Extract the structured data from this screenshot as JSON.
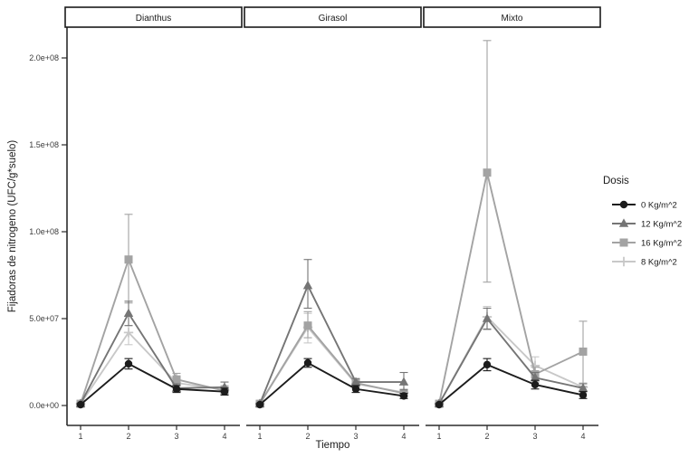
{
  "chart_data": {
    "type": "line",
    "title": "",
    "xlabel": "Tiempo",
    "ylabel": "Fijadoras de nitrogeno (UFC/g*suelo)",
    "legend_title": "Dosis",
    "legend_position": "right",
    "grid": false,
    "x": [
      1,
      2,
      3,
      4
    ],
    "xlim": [
      0.85,
      4.15
    ],
    "ylim": [
      0,
      210000000.0
    ],
    "yticks": [
      {
        "value": 0,
        "label": "0.0e+00"
      },
      {
        "value": 50000000.0,
        "label": "5.0e+07"
      },
      {
        "value": 100000000.0,
        "label": "1.0e+08"
      },
      {
        "value": 150000000.0,
        "label": "1.5e+08"
      },
      {
        "value": 200000000.0,
        "label": "2.0e+08"
      }
    ],
    "xticks": [
      "1",
      "2",
      "3",
      "4"
    ],
    "series_defs": [
      {
        "name": "0 Kg/m^2",
        "marker": "circle",
        "color": "#1c1c1c"
      },
      {
        "name": "12 Kg/m^2",
        "marker": "triangle",
        "color": "#757575"
      },
      {
        "name": "16 Kg/m^2",
        "marker": "square",
        "color": "#a3a3a3"
      },
      {
        "name": "8 Kg/m^2",
        "marker": "plus",
        "color": "#c8c8c8"
      }
    ],
    "facets": [
      {
        "label": "Dianthus",
        "series": [
          {
            "name": "0 Kg/m^2",
            "values": [
              500000.0,
              24000000.0,
              9500000.0,
              8000000.0
            ],
            "upper": [
              1000000.0,
              27000000.0,
              11500000.0,
              10000000.0
            ],
            "lower": [
              0,
              21000000.0,
              7500000.0,
              6000000.0
            ]
          },
          {
            "name": "12 Kg/m^2",
            "values": [
              1000000.0,
              53000000.0,
              10000000.0,
              10500000.0
            ],
            "upper": [
              1500000.0,
              60000000.0,
              12500000.0,
              13500000.0
            ],
            "lower": [
              500000.0,
              46000000.0,
              8000000.0,
              8000000.0
            ]
          },
          {
            "name": "16 Kg/m^2",
            "values": [
              1000000.0,
              84000000.0,
              15000000.0,
              8500000.0
            ],
            "upper": [
              2000000.0,
              110000000.0,
              18500000.0,
              11000000.0
            ],
            "lower": [
              500000.0,
              59000000.0,
              12000000.0,
              6000000.0
            ]
          },
          {
            "name": "8 Kg/m^2",
            "values": [
              1000000.0,
              42000000.0,
              13000000.0,
              9000000.0
            ],
            "upper": [
              1500000.0,
              46000000.0,
              16000000.0,
              11500000.0
            ],
            "lower": [
              500000.0,
              35000000.0,
              10000000.0,
              6500000.0
            ]
          }
        ]
      },
      {
        "label": "Girasol",
        "series": [
          {
            "name": "0 Kg/m^2",
            "values": [
              500000.0,
              24500000.0,
              9500000.0,
              5500000.0
            ],
            "upper": [
              1000000.0,
              27000000.0,
              11500000.0,
              7000000.0
            ],
            "lower": [
              0,
              22000000.0,
              7500000.0,
              4000000.0
            ]
          },
          {
            "name": "12 Kg/m^2",
            "values": [
              1000000.0,
              69000000.0,
              13500000.0,
              13500000.0
            ],
            "upper": [
              1500000.0,
              84000000.0,
              15500000.0,
              19000000.0
            ],
            "lower": [
              500000.0,
              56000000.0,
              11500000.0,
              9000000.0
            ]
          },
          {
            "name": "16 Kg/m^2",
            "values": [
              1000000.0,
              46000000.0,
              13000000.0,
              7000000.0
            ],
            "upper": [
              1500000.0,
              54000000.0,
              15000000.0,
              9000000.0
            ],
            "lower": [
              500000.0,
              39000000.0,
              11000000.0,
              5000000.0
            ]
          },
          {
            "name": "8 Kg/m^2",
            "values": [
              1000000.0,
              45000000.0,
              12500000.0,
              7500000.0
            ],
            "upper": [
              1500000.0,
              53000000.0,
              14500000.0,
              9500000.0
            ],
            "lower": [
              500000.0,
              36000000.0,
              10500000.0,
              5500000.0
            ]
          }
        ]
      },
      {
        "label": "Mixto",
        "series": [
          {
            "name": "0 Kg/m^2",
            "values": [
              500000.0,
              23500000.0,
              12000000.0,
              6000000.0
            ],
            "upper": [
              1000000.0,
              27000000.0,
              14500000.0,
              8000000.0
            ],
            "lower": [
              0,
              20000000.0,
              9500000.0,
              4000000.0
            ]
          },
          {
            "name": "12 Kg/m^2",
            "values": [
              1000000.0,
              50000000.0,
              16000000.0,
              10000000.0
            ],
            "upper": [
              1500000.0,
              56000000.0,
              19000000.0,
              12500000.0
            ],
            "lower": [
              500000.0,
              44000000.0,
              13000000.0,
              8000000.0
            ]
          },
          {
            "name": "16 Kg/m^2",
            "values": [
              1000000.0,
              134000000.0,
              18000000.0,
              31000000.0
            ],
            "upper": [
              2000000.0,
              210000000.0,
              22000000.0,
              48500000.0
            ],
            "lower": [
              500000.0,
              71000000.0,
              14000000.0,
              11000000.0
            ]
          },
          {
            "name": "8 Kg/m^2",
            "values": [
              1000000.0,
              51000000.0,
              23000000.0,
              10500000.0
            ],
            "upper": [
              1500000.0,
              57000000.0,
              28000000.0,
              13000000.0
            ],
            "lower": [
              500000.0,
              43500000.0,
              18000000.0,
              8000000.0
            ]
          }
        ]
      }
    ],
    "colors": {
      "axis": "#2b2b2b",
      "tick_text": "#3c3c3c",
      "strip_border": "#1a1a1a",
      "strip_fill": "#ffffff",
      "background": "#ffffff"
    }
  }
}
